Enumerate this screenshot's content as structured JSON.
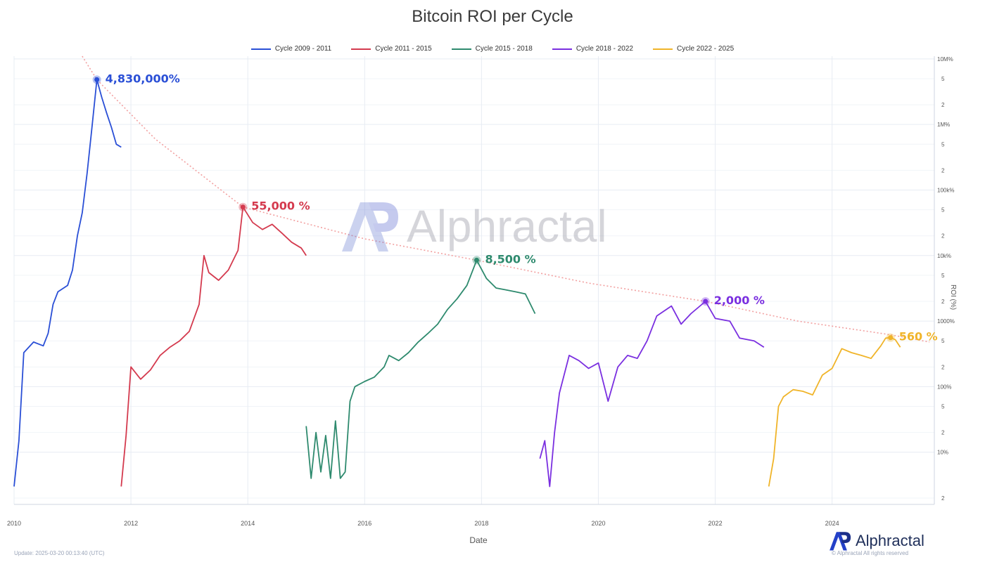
{
  "chart_data": {
    "type": "line",
    "title": "Bitcoin ROI per Cycle",
    "xlabel": "Date",
    "ylabel": "ROI (%)",
    "y_scale": "log",
    "ylim": [
      1.6,
      11000000
    ],
    "xlim": [
      "2010-01",
      "2025-10"
    ],
    "grid": true,
    "legend_position": "top-center",
    "x_ticks": [
      "2010",
      "2012",
      "2014",
      "2016",
      "2018",
      "2020",
      "2022",
      "2024"
    ],
    "y_major_ticks": [
      {
        "value": 10,
        "label": "10%"
      },
      {
        "value": 100,
        "label": "100%"
      },
      {
        "value": 1000,
        "label": "1000%"
      },
      {
        "value": 10000,
        "label": "10k%"
      },
      {
        "value": 100000,
        "label": "100k%"
      },
      {
        "value": 1000000,
        "label": "1M%"
      },
      {
        "value": 10000000,
        "label": "10M%"
      }
    ],
    "y_minor_multipliers": [
      {
        "factor": 5,
        "label": "5"
      },
      {
        "factor": 2,
        "label": "2"
      }
    ],
    "y_bottom_tick": {
      "value": 2,
      "label": "2"
    },
    "series": [
      {
        "name": "Cycle 2009 - 2011",
        "color": "#2a4fd6",
        "points": [
          [
            "2010-01",
            3
          ],
          [
            "2010-02",
            15
          ],
          [
            "2010-03",
            330
          ],
          [
            "2010-05",
            480
          ],
          [
            "2010-07",
            420
          ],
          [
            "2010-08",
            650
          ],
          [
            "2010-09",
            1800
          ],
          [
            "2010-10",
            2800
          ],
          [
            "2010-12",
            3500
          ],
          [
            "2011-01",
            6000
          ],
          [
            "2011-02",
            20000
          ],
          [
            "2011-03",
            45000
          ],
          [
            "2011-04",
            180000
          ],
          [
            "2011-05",
            900000
          ],
          [
            "2011-06",
            4830000
          ],
          [
            "2011-07",
            2600000
          ],
          [
            "2011-08",
            1500000
          ],
          [
            "2011-09",
            900000
          ],
          [
            "2011-10",
            500000
          ],
          [
            "2011-11",
            450000
          ]
        ]
      },
      {
        "name": "Cycle 2011 - 2015",
        "color": "#d43a4e",
        "points": [
          [
            "2011-11",
            3
          ],
          [
            "2011-12",
            18
          ],
          [
            "2012-01",
            200
          ],
          [
            "2012-03",
            130
          ],
          [
            "2012-05",
            180
          ],
          [
            "2012-07",
            300
          ],
          [
            "2012-09",
            400
          ],
          [
            "2012-11",
            500
          ],
          [
            "2013-01",
            700
          ],
          [
            "2013-03",
            1800
          ],
          [
            "2013-04",
            10000
          ],
          [
            "2013-05",
            5500
          ],
          [
            "2013-07",
            4200
          ],
          [
            "2013-09",
            6000
          ],
          [
            "2013-11",
            12000
          ],
          [
            "2013-12",
            55000
          ],
          [
            "2014-02",
            32000
          ],
          [
            "2014-04",
            25000
          ],
          [
            "2014-06",
            30000
          ],
          [
            "2014-08",
            22000
          ],
          [
            "2014-10",
            16000
          ],
          [
            "2014-12",
            13000
          ],
          [
            "2015-01",
            10000
          ]
        ]
      },
      {
        "name": "Cycle 2015 - 2018",
        "color": "#2e8a6e",
        "points": [
          [
            "2015-01",
            25
          ],
          [
            "2015-02",
            4
          ],
          [
            "2015-03",
            20
          ],
          [
            "2015-04",
            5
          ],
          [
            "2015-05",
            18
          ],
          [
            "2015-06",
            4
          ],
          [
            "2015-07",
            30
          ],
          [
            "2015-08",
            4
          ],
          [
            "2015-09",
            5
          ],
          [
            "2015-10",
            60
          ],
          [
            "2015-11",
            100
          ],
          [
            "2016-01",
            120
          ],
          [
            "2016-03",
            140
          ],
          [
            "2016-05",
            200
          ],
          [
            "2016-06",
            300
          ],
          [
            "2016-08",
            250
          ],
          [
            "2016-10",
            330
          ],
          [
            "2016-12",
            480
          ],
          [
            "2017-02",
            650
          ],
          [
            "2017-04",
            900
          ],
          [
            "2017-06",
            1500
          ],
          [
            "2017-08",
            2200
          ],
          [
            "2017-10",
            3500
          ],
          [
            "2017-12",
            8500
          ],
          [
            "2018-02",
            4500
          ],
          [
            "2018-04",
            3200
          ],
          [
            "2018-06",
            3000
          ],
          [
            "2018-08",
            2800
          ],
          [
            "2018-10",
            2600
          ],
          [
            "2018-12",
            1300
          ]
        ]
      },
      {
        "name": "Cycle 2018 - 2022",
        "color": "#7a2fe0",
        "points": [
          [
            "2019-01",
            8
          ],
          [
            "2019-02",
            15
          ],
          [
            "2019-03",
            3
          ],
          [
            "2019-04",
            20
          ],
          [
            "2019-05",
            80
          ],
          [
            "2019-07",
            300
          ],
          [
            "2019-09",
            250
          ],
          [
            "2019-11",
            190
          ],
          [
            "2020-01",
            230
          ],
          [
            "2020-03",
            60
          ],
          [
            "2020-05",
            200
          ],
          [
            "2020-07",
            300
          ],
          [
            "2020-09",
            270
          ],
          [
            "2020-11",
            500
          ],
          [
            "2021-01",
            1200
          ],
          [
            "2021-04",
            1700
          ],
          [
            "2021-06",
            900
          ],
          [
            "2021-08",
            1300
          ],
          [
            "2021-11",
            2000
          ],
          [
            "2022-01",
            1100
          ],
          [
            "2022-04",
            1000
          ],
          [
            "2022-06",
            550
          ],
          [
            "2022-09",
            500
          ],
          [
            "2022-11",
            400
          ]
        ]
      },
      {
        "name": "Cycle 2022 - 2025",
        "color": "#f0b429",
        "points": [
          [
            "2022-12",
            3
          ],
          [
            "2023-01",
            8
          ],
          [
            "2023-02",
            50
          ],
          [
            "2023-03",
            70
          ],
          [
            "2023-05",
            90
          ],
          [
            "2023-07",
            85
          ],
          [
            "2023-09",
            75
          ],
          [
            "2023-11",
            150
          ],
          [
            "2024-01",
            190
          ],
          [
            "2024-03",
            380
          ],
          [
            "2024-05",
            330
          ],
          [
            "2024-07",
            300
          ],
          [
            "2024-09",
            270
          ],
          [
            "2024-11",
            420
          ],
          [
            "2024-12",
            550
          ],
          [
            "2025-01",
            560
          ],
          [
            "2025-02",
            520
          ],
          [
            "2025-03",
            400
          ]
        ]
      }
    ],
    "trendline": {
      "color": "#f2a0a0",
      "style": "dotted",
      "points": [
        [
          "2011-03",
          11000000
        ],
        [
          "2011-06",
          4830000
        ],
        [
          "2012-06",
          600000
        ],
        [
          "2013-12",
          55000
        ],
        [
          "2016-01",
          18000
        ],
        [
          "2017-12",
          8500
        ],
        [
          "2019-11",
          3800
        ],
        [
          "2021-11",
          2000
        ],
        [
          "2023-06",
          1000
        ],
        [
          "2025-01",
          620
        ],
        [
          "2025-09",
          480
        ]
      ]
    },
    "annotations": [
      {
        "text": "4,830,000%",
        "date": "2011-06",
        "value": 4830000,
        "color": "#2a4fd6"
      },
      {
        "text": "55,000 %",
        "date": "2013-12",
        "value": 55000,
        "color": "#d43a4e"
      },
      {
        "text": "8,500 %",
        "date": "2017-12",
        "value": 8500,
        "color": "#2e8a6e"
      },
      {
        "text": "2,000 %",
        "date": "2021-11",
        "value": 2000,
        "color": "#7a2fe0"
      },
      {
        "text": "560 %",
        "date": "2025-01",
        "value": 560,
        "color": "#f0b429"
      }
    ]
  },
  "watermark": {
    "text": "Alphractal",
    "logo_text": "AP"
  },
  "brand": {
    "text": "Alphractal",
    "logo_text": "AP",
    "copyright": "© Alphractal All rights reserved"
  },
  "update_note": "Update: 2025-03-20 00:13:40 (UTC)"
}
